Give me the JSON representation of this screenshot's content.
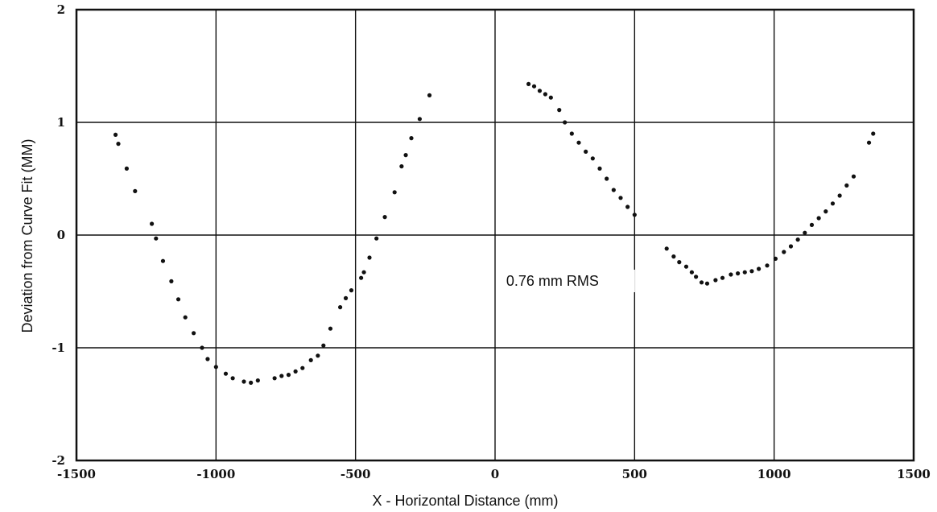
{
  "chart_data": {
    "type": "scatter",
    "xlabel": "X - Horizontal Distance (mm)",
    "ylabel": "Deviation from Curve Fit (MM)",
    "xlim": [
      -1500,
      1500
    ],
    "ylim": [
      -2,
      2
    ],
    "x_ticks": [
      -1500,
      -1000,
      -500,
      0,
      500,
      1000,
      1500
    ],
    "x_tick_labels": [
      "-1500",
      "-1000",
      "-500",
      "0",
      "500",
      "1000",
      "1500"
    ],
    "y_ticks": [
      -2,
      -1,
      0,
      1,
      2
    ],
    "y_tick_labels": [
      "-2",
      "-1",
      "0",
      "1",
      "2"
    ],
    "grid": true,
    "annotation": {
      "text": "0.76 mm RMS",
      "x": 40,
      "y": -0.45
    },
    "series": [
      {
        "marker_color": "#111111",
        "points": [
          [
            -1360,
            0.89
          ],
          [
            -1350,
            0.81
          ],
          [
            -1320,
            0.59
          ],
          [
            -1290,
            0.39
          ],
          [
            -1230,
            0.1
          ],
          [
            -1215,
            -0.03
          ],
          [
            -1190,
            -0.23
          ],
          [
            -1160,
            -0.41
          ],
          [
            -1135,
            -0.57
          ],
          [
            -1110,
            -0.73
          ],
          [
            -1080,
            -0.87
          ],
          [
            -1050,
            -1.0
          ],
          [
            -1030,
            -1.1
          ],
          [
            -1000,
            -1.17
          ],
          [
            -965,
            -1.23
          ],
          [
            -940,
            -1.27
          ],
          [
            -900,
            -1.3
          ],
          [
            -875,
            -1.31
          ],
          [
            -850,
            -1.29
          ],
          [
            -790,
            -1.27
          ],
          [
            -765,
            -1.25
          ],
          [
            -740,
            -1.24
          ],
          [
            -715,
            -1.21
          ],
          [
            -690,
            -1.18
          ],
          [
            -660,
            -1.11
          ],
          [
            -635,
            -1.07
          ],
          [
            -615,
            -0.98
          ],
          [
            -590,
            -0.83
          ],
          [
            -555,
            -0.64
          ],
          [
            -535,
            -0.56
          ],
          [
            -515,
            -0.49
          ],
          [
            -480,
            -0.38
          ],
          [
            -470,
            -0.33
          ],
          [
            -450,
            -0.2
          ],
          [
            -425,
            -0.03
          ],
          [
            -395,
            0.16
          ],
          [
            -360,
            0.38
          ],
          [
            -335,
            0.61
          ],
          [
            -320,
            0.71
          ],
          [
            -300,
            0.86
          ],
          [
            -270,
            1.03
          ],
          [
            -235,
            1.24
          ],
          [
            120,
            1.34
          ],
          [
            140,
            1.32
          ],
          [
            160,
            1.28
          ],
          [
            180,
            1.25
          ],
          [
            200,
            1.22
          ],
          [
            230,
            1.11
          ],
          [
            250,
            1.0
          ],
          [
            275,
            0.9
          ],
          [
            300,
            0.82
          ],
          [
            325,
            0.74
          ],
          [
            350,
            0.68
          ],
          [
            375,
            0.59
          ],
          [
            400,
            0.5
          ],
          [
            425,
            0.4
          ],
          [
            450,
            0.33
          ],
          [
            475,
            0.25
          ],
          [
            500,
            0.18
          ],
          [
            615,
            -0.12
          ],
          [
            640,
            -0.19
          ],
          [
            660,
            -0.24
          ],
          [
            685,
            -0.28
          ],
          [
            705,
            -0.33
          ],
          [
            720,
            -0.37
          ],
          [
            740,
            -0.42
          ],
          [
            760,
            -0.43
          ],
          [
            790,
            -0.4
          ],
          [
            815,
            -0.38
          ],
          [
            845,
            -0.35
          ],
          [
            870,
            -0.34
          ],
          [
            895,
            -0.33
          ],
          [
            920,
            -0.32
          ],
          [
            945,
            -0.3
          ],
          [
            975,
            -0.27
          ],
          [
            1005,
            -0.21
          ],
          [
            1035,
            -0.15
          ],
          [
            1060,
            -0.1
          ],
          [
            1085,
            -0.04
          ],
          [
            1110,
            0.02
          ],
          [
            1135,
            0.09
          ],
          [
            1160,
            0.15
          ],
          [
            1185,
            0.21
          ],
          [
            1210,
            0.28
          ],
          [
            1235,
            0.35
          ],
          [
            1260,
            0.44
          ],
          [
            1285,
            0.52
          ],
          [
            1340,
            0.82
          ],
          [
            1355,
            0.9
          ]
        ]
      }
    ]
  }
}
